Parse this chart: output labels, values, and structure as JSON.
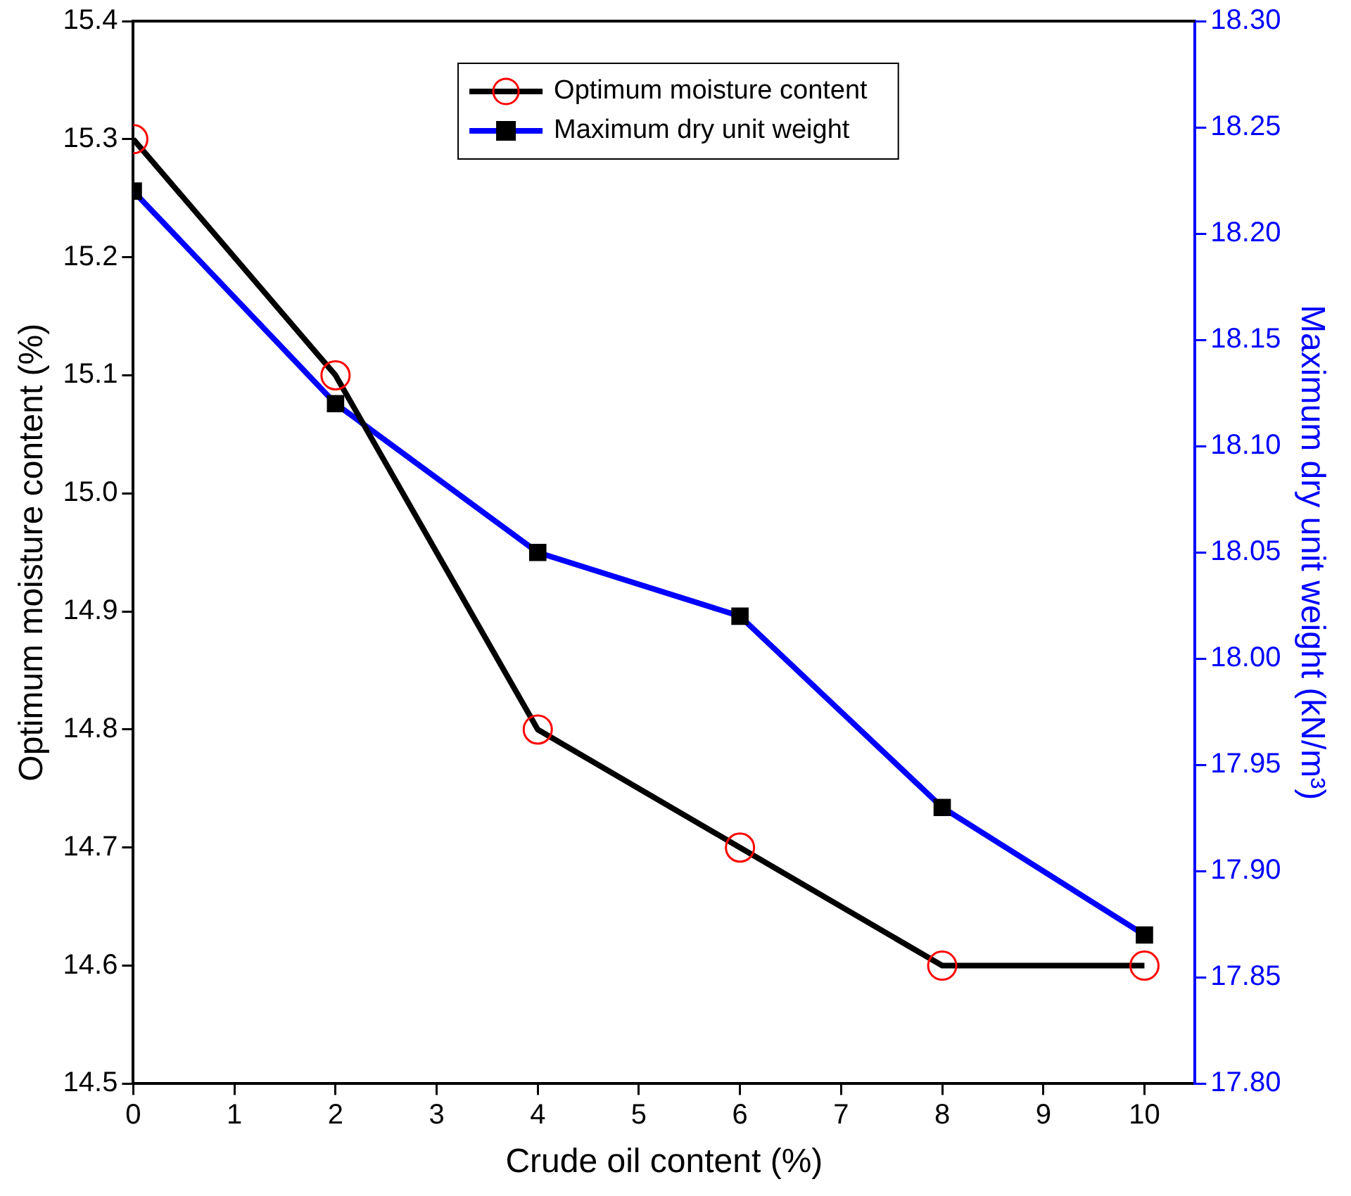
{
  "chart_data": {
    "type": "line",
    "xlabel": "Crude oil content (%)",
    "ylabel": "Optimum moisture content (%)",
    "y2label": "Maximum dry unit weight (kN/m³)",
    "x": [
      0,
      2,
      4,
      6,
      8,
      10
    ],
    "series": [
      {
        "name": "Optimum moisture content",
        "color": "#000000",
        "marker": "circle",
        "values": [
          15.3,
          15.1,
          14.8,
          14.7,
          14.6,
          14.6
        ]
      },
      {
        "name": "Maximum dry unit weight",
        "color": "#0000ff",
        "marker": "square",
        "axis": "y2",
        "values": [
          18.22,
          18.12,
          18.05,
          18.02,
          17.93,
          17.87
        ]
      }
    ],
    "xlim": [
      0,
      10.5
    ],
    "xticks": [
      0,
      1,
      2,
      3,
      4,
      5,
      6,
      7,
      8,
      9,
      10
    ],
    "ylim": [
      14.5,
      15.4
    ],
    "yticks": [
      {
        "value": 14.5,
        "label": "14.5"
      },
      {
        "value": 14.6,
        "label": "14.6"
      },
      {
        "value": 14.7,
        "label": "14.7"
      },
      {
        "value": 14.8,
        "label": "14.8"
      },
      {
        "value": 14.9,
        "label": "14.9"
      },
      {
        "value": 15.0,
        "label": "15.0"
      },
      {
        "value": 15.1,
        "label": "15.1"
      },
      {
        "value": 15.2,
        "label": "15.2"
      },
      {
        "value": 15.3,
        "label": "15.3"
      },
      {
        "value": 15.4,
        "label": "15.4"
      }
    ],
    "y2lim": [
      17.8,
      18.3
    ],
    "y2ticks": [
      {
        "value": 17.8,
        "label": "17.80"
      },
      {
        "value": 17.85,
        "label": "17.85"
      },
      {
        "value": 17.9,
        "label": "17.90"
      },
      {
        "value": 17.95,
        "label": "17.95"
      },
      {
        "value": 18.0,
        "label": "18.00"
      },
      {
        "value": 18.05,
        "label": "18.05"
      },
      {
        "value": 18.1,
        "label": "18.10"
      },
      {
        "value": 18.15,
        "label": "18.15"
      },
      {
        "value": 18.2,
        "label": "18.20"
      },
      {
        "value": 18.25,
        "label": "18.25"
      },
      {
        "value": 18.3,
        "label": "18.30"
      }
    ],
    "grid": false,
    "legend": "top",
    "line_style": "solid"
  }
}
